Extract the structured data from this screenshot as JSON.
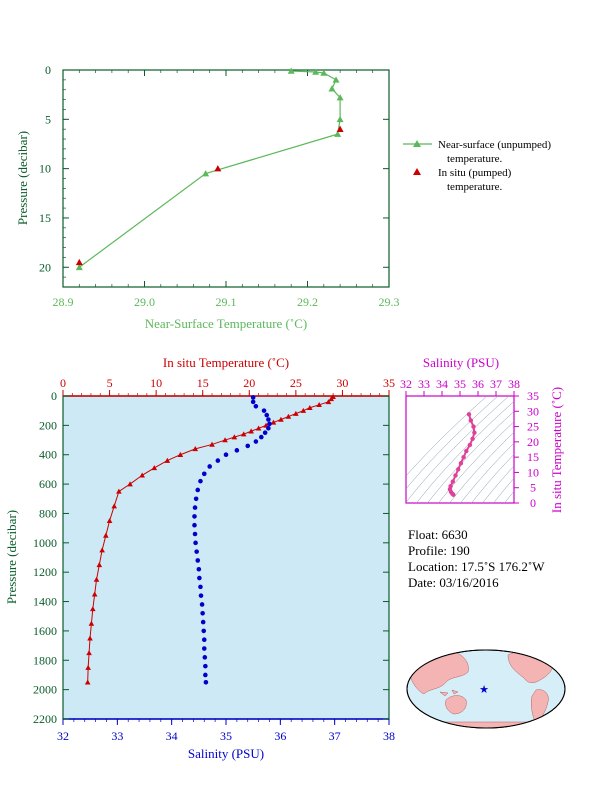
{
  "colors": {
    "near_surface": "#5cb85c",
    "insitu": "#cc0000",
    "salinity": "#0000cc",
    "salinity_axis": "#cc00cc",
    "panel_bg": "#cde9f5",
    "axis_green": "#0a5c2a"
  },
  "chart_data": [
    {
      "type": "line",
      "xlabel": "Near-Surface Temperature (˚C)",
      "ylabel": "Pressure (decibar)",
      "xlim": [
        28.9,
        29.3
      ],
      "ylim": [
        0,
        22
      ],
      "x_ticks": [
        "28.9",
        "29.0",
        "29.1",
        "29.2",
        "29.3"
      ],
      "y_ticks": [
        "0",
        "5",
        "10",
        "15",
        "20"
      ],
      "legend": "right",
      "series": [
        {
          "name": "Near-surface (unpumped) temperature.",
          "marker": "triangle-line",
          "points": [
            {
              "x": 29.18,
              "y": 0.1
            },
            {
              "x": 29.21,
              "y": 0.2
            },
            {
              "x": 29.22,
              "y": 0.3
            },
            {
              "x": 29.235,
              "y": 1.0
            },
            {
              "x": 29.23,
              "y": 1.9
            },
            {
              "x": 29.24,
              "y": 2.8
            },
            {
              "x": 29.24,
              "y": 5.0
            },
            {
              "x": 29.237,
              "y": 6.5
            },
            {
              "x": 29.075,
              "y": 10.5
            },
            {
              "x": 28.92,
              "y": 20.0
            }
          ]
        },
        {
          "name": "In situ (pumped) temperature.",
          "marker": "triangle",
          "points": [
            {
              "x": 29.24,
              "y": 6.0
            },
            {
              "x": 29.09,
              "y": 10.0
            },
            {
              "x": 28.92,
              "y": 19.5
            }
          ]
        }
      ]
    },
    {
      "type": "scatter",
      "top_axis_label": "In situ Temperature (˚C)",
      "xlabel": "Salinity (PSU)",
      "ylabel": "Pressure (decibar)",
      "temp_lim": [
        0,
        35
      ],
      "sal_lim": [
        32,
        38
      ],
      "ylim": [
        0,
        2200
      ],
      "temp_ticks": [
        "0",
        "5",
        "10",
        "15",
        "20",
        "25",
        "30",
        "35"
      ],
      "sal_ticks": [
        "32",
        "33",
        "34",
        "35",
        "36",
        "37",
        "38"
      ],
      "y_ticks": [
        "0",
        "200",
        "400",
        "600",
        "800",
        "1000",
        "1200",
        "1400",
        "1600",
        "1800",
        "2000",
        "2200"
      ],
      "temperature": [
        {
          "t": 29.0,
          "p": 5
        },
        {
          "t": 28.8,
          "p": 20
        },
        {
          "t": 28.5,
          "p": 40
        },
        {
          "t": 27.5,
          "p": 60
        },
        {
          "t": 26.5,
          "p": 80
        },
        {
          "t": 25.8,
          "p": 100
        },
        {
          "t": 25.0,
          "p": 120
        },
        {
          "t": 24.2,
          "p": 140
        },
        {
          "t": 23.4,
          "p": 160
        },
        {
          "t": 22.6,
          "p": 180
        },
        {
          "t": 21.8,
          "p": 200
        },
        {
          "t": 21.0,
          "p": 220
        },
        {
          "t": 20.2,
          "p": 240
        },
        {
          "t": 19.4,
          "p": 260
        },
        {
          "t": 18.4,
          "p": 280
        },
        {
          "t": 17.4,
          "p": 300
        },
        {
          "t": 16.0,
          "p": 330
        },
        {
          "t": 14.2,
          "p": 360
        },
        {
          "t": 12.6,
          "p": 400
        },
        {
          "t": 11.2,
          "p": 440
        },
        {
          "t": 9.8,
          "p": 490
        },
        {
          "t": 8.5,
          "p": 540
        },
        {
          "t": 7.2,
          "p": 600
        },
        {
          "t": 6.0,
          "p": 650
        },
        {
          "t": 5.5,
          "p": 750
        },
        {
          "t": 5.0,
          "p": 850
        },
        {
          "t": 4.6,
          "p": 950
        },
        {
          "t": 4.2,
          "p": 1050
        },
        {
          "t": 3.9,
          "p": 1150
        },
        {
          "t": 3.6,
          "p": 1250
        },
        {
          "t": 3.4,
          "p": 1350
        },
        {
          "t": 3.2,
          "p": 1450
        },
        {
          "t": 3.05,
          "p": 1550
        },
        {
          "t": 2.9,
          "p": 1650
        },
        {
          "t": 2.8,
          "p": 1750
        },
        {
          "t": 2.7,
          "p": 1850
        },
        {
          "t": 2.65,
          "p": 1950
        }
      ],
      "salinity": [
        {
          "s": 35.5,
          "p": 10
        },
        {
          "s": 35.5,
          "p": 40
        },
        {
          "s": 35.55,
          "p": 70
        },
        {
          "s": 35.7,
          "p": 100
        },
        {
          "s": 35.75,
          "p": 130
        },
        {
          "s": 35.78,
          "p": 160
        },
        {
          "s": 35.8,
          "p": 190
        },
        {
          "s": 35.78,
          "p": 220
        },
        {
          "s": 35.72,
          "p": 250
        },
        {
          "s": 35.65,
          "p": 280
        },
        {
          "s": 35.55,
          "p": 310
        },
        {
          "s": 35.4,
          "p": 340
        },
        {
          "s": 35.2,
          "p": 370
        },
        {
          "s": 35.0,
          "p": 400
        },
        {
          "s": 34.85,
          "p": 440
        },
        {
          "s": 34.7,
          "p": 480
        },
        {
          "s": 34.6,
          "p": 530
        },
        {
          "s": 34.53,
          "p": 580
        },
        {
          "s": 34.48,
          "p": 640
        },
        {
          "s": 34.45,
          "p": 700
        },
        {
          "s": 34.43,
          "p": 760
        },
        {
          "s": 34.42,
          "p": 820
        },
        {
          "s": 34.42,
          "p": 880
        },
        {
          "s": 34.43,
          "p": 940
        },
        {
          "s": 34.44,
          "p": 1000
        },
        {
          "s": 34.46,
          "p": 1060
        },
        {
          "s": 34.48,
          "p": 1120
        },
        {
          "s": 34.5,
          "p": 1180
        },
        {
          "s": 34.51,
          "p": 1240
        },
        {
          "s": 34.53,
          "p": 1300
        },
        {
          "s": 34.54,
          "p": 1360
        },
        {
          "s": 34.56,
          "p": 1420
        },
        {
          "s": 34.57,
          "p": 1480
        },
        {
          "s": 34.58,
          "p": 1540
        },
        {
          "s": 34.59,
          "p": 1600
        },
        {
          "s": 34.6,
          "p": 1660
        },
        {
          "s": 34.6,
          "p": 1720
        },
        {
          "s": 34.61,
          "p": 1780
        },
        {
          "s": 34.62,
          "p": 1840
        },
        {
          "s": 34.62,
          "p": 1900
        },
        {
          "s": 34.63,
          "p": 1950
        }
      ]
    },
    {
      "type": "scatter",
      "xlabel": "Salinity (PSU)",
      "ylabel": "In situ Temperature (˚C)",
      "xlim": [
        32,
        38
      ],
      "ylim": [
        0,
        35
      ],
      "x_ticks": [
        "32",
        "33",
        "34",
        "35",
        "36",
        "37",
        "38"
      ],
      "y_ticks": [
        "0",
        "5",
        "10",
        "15",
        "20",
        "25",
        "30",
        "35"
      ],
      "points": [
        {
          "x": 35.5,
          "y": 29
        },
        {
          "x": 35.6,
          "y": 27
        },
        {
          "x": 35.75,
          "y": 25
        },
        {
          "x": 35.8,
          "y": 23
        },
        {
          "x": 35.7,
          "y": 21
        },
        {
          "x": 35.55,
          "y": 19
        },
        {
          "x": 35.35,
          "y": 17
        },
        {
          "x": 35.2,
          "y": 15
        },
        {
          "x": 35.05,
          "y": 13
        },
        {
          "x": 34.9,
          "y": 11
        },
        {
          "x": 34.75,
          "y": 9
        },
        {
          "x": 34.6,
          "y": 7
        },
        {
          "x": 34.48,
          "y": 5.5
        },
        {
          "x": 34.44,
          "y": 4.5
        },
        {
          "x": 34.5,
          "y": 3.6
        },
        {
          "x": 34.58,
          "y": 3.0
        },
        {
          "x": 34.63,
          "y": 2.7
        }
      ]
    }
  ],
  "info": {
    "float": "Float:  6630",
    "profile": "Profile:  190",
    "location": "Location:  17.5˚S  176.2˚W",
    "date": "Date:  03/16/2016"
  },
  "map": {
    "marker_icon": "star-icon"
  }
}
